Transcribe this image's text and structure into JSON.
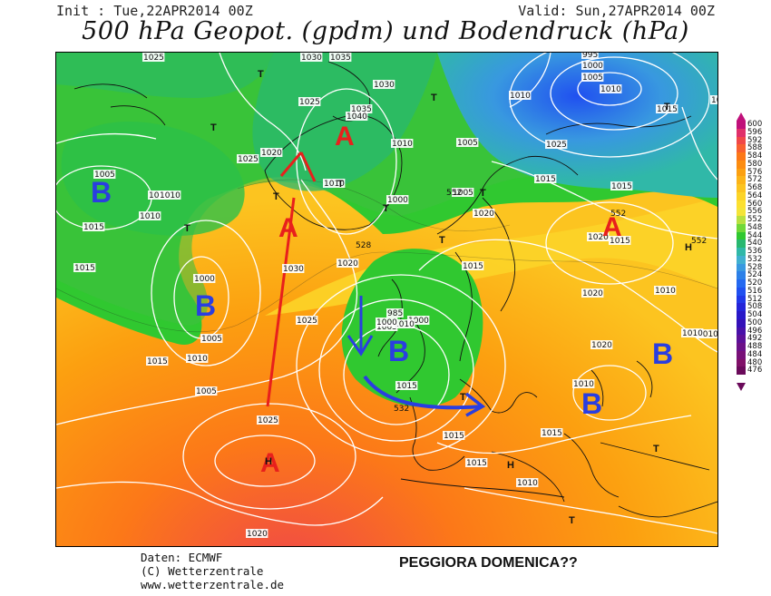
{
  "header": {
    "init": "Init : Tue,22APR2014 00Z",
    "valid": "Valid: Sun,27APR2014 00Z",
    "title": "500 hPa Geopot. (gpdm) und Bodendruck (hPa)"
  },
  "legend": {
    "values": [
      "600",
      "596",
      "592",
      "588",
      "584",
      "580",
      "576",
      "572",
      "568",
      "564",
      "560",
      "556",
      "552",
      "548",
      "544",
      "540",
      "536",
      "532",
      "528",
      "524",
      "520",
      "516",
      "512",
      "508",
      "504",
      "500",
      "496",
      "492",
      "488",
      "484",
      "480",
      "476"
    ],
    "colors": [
      "#c0107a",
      "#e0306a",
      "#f04848",
      "#f86030",
      "#fc7818",
      "#fc8c10",
      "#fca010",
      "#fcb418",
      "#fcc420",
      "#fcd428",
      "#fce030",
      "#f4e438",
      "#b8e040",
      "#70d838",
      "#30c830",
      "#28b870",
      "#30b8a8",
      "#40b0d0",
      "#3898e0",
      "#2c80e8",
      "#2468f0",
      "#2050f0",
      "#2038e8",
      "#2424d8",
      "#2818c8",
      "#3410b8",
      "#4810a8",
      "#5c1098",
      "#6c1088",
      "#781078",
      "#801068",
      "#6a0a5a"
    ]
  },
  "map": {
    "surface_pressure_labels": [
      "1025",
      "1030",
      "1035",
      "1030",
      "1025",
      "1035",
      "1040",
      "1020",
      "1010",
      "1000",
      "985",
      "995",
      "1000",
      "1005",
      "1010",
      "1015",
      "1020",
      "1025",
      "1005",
      "1010",
      "1005",
      "1000",
      "1010",
      "1005",
      "1010",
      "1015",
      "1000",
      "1005",
      "1010",
      "1030",
      "1025",
      "1020",
      "1010",
      "1020",
      "1015",
      "1015",
      "1020",
      "1010",
      "1015",
      "1005",
      "1010",
      "1025",
      "1015",
      "1020",
      "1015",
      "1010",
      "1010",
      "1015",
      "1025",
      "1020",
      "1010",
      "1015",
      "1015",
      "1010",
      "1015",
      "1000",
      "1005",
      "1010",
      "1020",
      "1015"
    ],
    "geopotential_labels": [
      "552",
      "528",
      "552",
      "552",
      "532"
    ],
    "pressure_centers": [
      "A",
      "A",
      "A",
      "A",
      "B",
      "B",
      "B",
      "B",
      "B",
      "H",
      "H",
      "H",
      "T",
      "T",
      "T",
      "T",
      "T",
      "T",
      "T",
      "T",
      "T",
      "T",
      "T",
      "T",
      "T"
    ]
  },
  "credits": {
    "line1": "Daten: ECMWF",
    "line2": "(C) Wetterzentrale",
    "line3": "www.wetterzentrale.de"
  },
  "caption": "PEGGIORA DOMENICA??",
  "colors": {
    "high_marker": "#e8201c",
    "low_marker": "#2a3ee0",
    "isobar": "#ffffff",
    "coastline": "#111111"
  }
}
